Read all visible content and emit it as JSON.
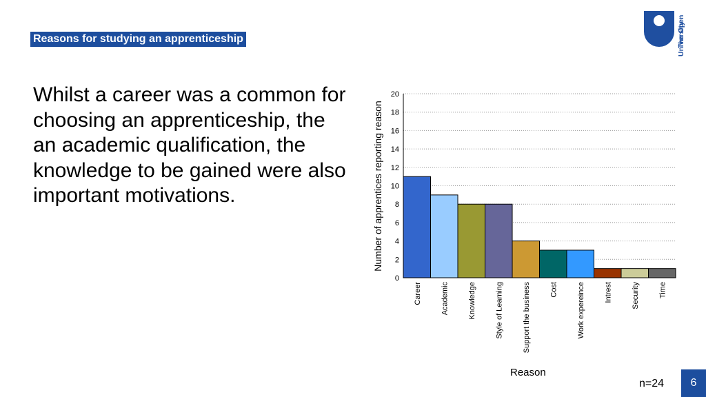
{
  "slide": {
    "title": "Reasons for studying an apprenticeship",
    "logo_line1": "The Open",
    "logo_line2": "University",
    "body": "Whilst a career was a common for choosing an apprenticeship, the an academic qualification, the knowledge to be gained were also important motivations.",
    "n_label": "n=24",
    "page_number": "6"
  },
  "chart_data": {
    "type": "bar",
    "categories": [
      "Career",
      "Academic",
      "Knowledge",
      "Style of Learning",
      "Support the business",
      "Cost",
      "Work expereince",
      "Intrest",
      "Security",
      "Time"
    ],
    "values": [
      11,
      9,
      8,
      8,
      4,
      3,
      3,
      1,
      1,
      1
    ],
    "colors": [
      "#3366cc",
      "#99ccff",
      "#999933",
      "#666699",
      "#cc9933",
      "#006666",
      "#3399ff",
      "#993300",
      "#cccc99",
      "#666666"
    ],
    "xlabel": "Reason",
    "ylabel": "Number of apprentices reporting reason",
    "ylim": [
      0,
      20
    ],
    "yticks": [
      0,
      2,
      4,
      6,
      8,
      10,
      12,
      14,
      16,
      18,
      20
    ],
    "grid": true
  }
}
